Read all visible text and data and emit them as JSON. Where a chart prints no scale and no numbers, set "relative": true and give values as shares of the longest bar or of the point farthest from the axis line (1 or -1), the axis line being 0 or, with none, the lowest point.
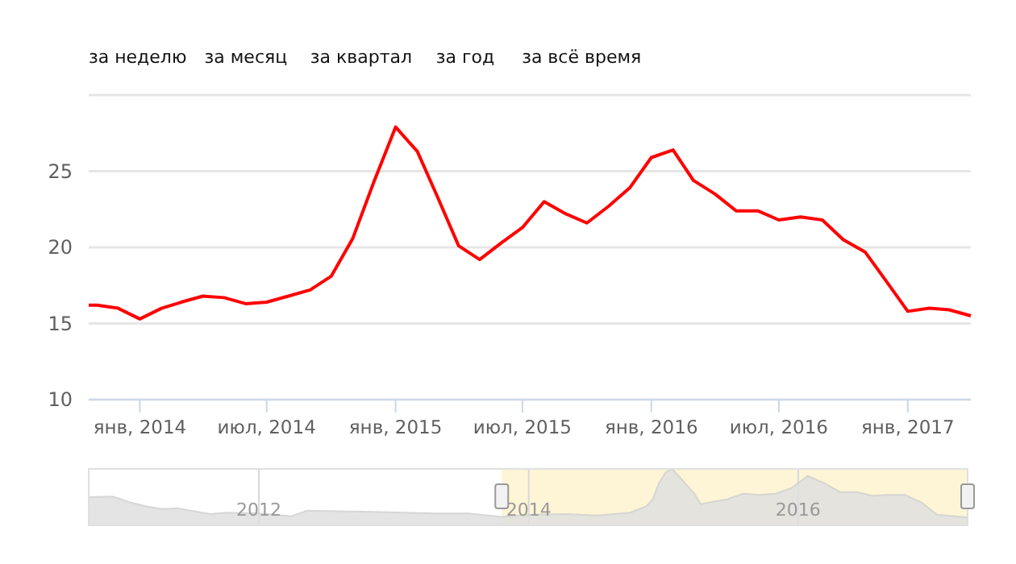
{
  "chart_data": [
    {
      "type": "line",
      "annotations": [
        "за неделю",
        "за месяц",
        "за квартал",
        "за год",
        "за всё время"
      ],
      "x": [
        "2013-10-20",
        "2013-11-01",
        "2013-12-01",
        "2014-01-01",
        "2014-02-01",
        "2014-03-01",
        "2014-04-01",
        "2014-05-01",
        "2014-06-01",
        "2014-07-01",
        "2014-08-01",
        "2014-09-01",
        "2014-10-01",
        "2014-11-01",
        "2014-12-01",
        "2015-01-01",
        "2015-02-01",
        "2015-03-01",
        "2015-04-01",
        "2015-05-01",
        "2015-06-01",
        "2015-07-01",
        "2015-08-01",
        "2015-09-01",
        "2015-10-01",
        "2015-11-01",
        "2015-12-01",
        "2016-01-01",
        "2016-02-01",
        "2016-03-01",
        "2016-04-01",
        "2016-05-01",
        "2016-06-01",
        "2016-07-01",
        "2016-08-01",
        "2016-09-01",
        "2016-10-01",
        "2016-11-01",
        "2016-12-01",
        "2017-01-01",
        "2017-02-01",
        "2017-03-01",
        "2017-04-01"
      ],
      "values": [
        16.2,
        16.2,
        16.0,
        15.3,
        16.0,
        16.4,
        16.8,
        16.7,
        16.3,
        16.4,
        16.8,
        17.2,
        18.1,
        20.6,
        24.3,
        27.9,
        26.3,
        23.4,
        20.1,
        19.2,
        20.3,
        21.3,
        23.0,
        22.2,
        21.6,
        22.7,
        23.9,
        25.9,
        26.4,
        24.4,
        23.5,
        22.4,
        22.4,
        21.8,
        22.0,
        21.8,
        20.5,
        19.7,
        17.8,
        15.8,
        16.0,
        15.9,
        15.5
      ],
      "color": "#ff0000",
      "xlim": [
        "2013-10-20",
        "2017-04-01"
      ],
      "ylim": [
        10,
        30
      ],
      "xticks": [
        {
          "value": "2014-01-01",
          "label": "янв, 2014"
        },
        {
          "value": "2014-07-01",
          "label": "июл, 2014"
        },
        {
          "value": "2015-01-01",
          "label": "янв, 2015"
        },
        {
          "value": "2015-07-01",
          "label": "июл, 2015"
        },
        {
          "value": "2016-01-01",
          "label": "янв, 2016"
        },
        {
          "value": "2016-07-01",
          "label": "июл, 2016"
        },
        {
          "value": "2017-01-01",
          "label": "янв, 2017"
        }
      ],
      "yticks": [
        10,
        15,
        20,
        25,
        {
          "value": 30,
          "label": null
        }
      ],
      "grid": "y"
    },
    {
      "type": "area",
      "relative": true,
      "color": "#e0e0e0",
      "x": [
        "2010-09-27",
        "2010-12-02",
        "2011-01-15",
        "2011-02-28",
        "2011-04-12",
        "2011-05-26",
        "2011-07-09",
        "2011-08-22",
        "2011-10-05",
        "2012-01-01",
        "2012-02-14",
        "2012-03-29",
        "2012-05-11",
        "2012-08-07",
        "2012-11-02",
        "2013-01-29",
        "2013-04-26",
        "2013-07-23",
        "2013-10-18",
        "2014-01-14",
        "2014-04-10",
        "2014-07-07",
        "2014-10-03",
        "2014-11-16",
        "2014-12-03",
        "2014-12-20",
        "2015-01-07",
        "2015-01-24",
        "2015-02-11",
        "2015-02-28",
        "2015-03-26",
        "2015-04-12",
        "2015-05-09",
        "2015-06-22",
        "2015-08-05",
        "2015-09-17",
        "2015-10-31",
        "2015-12-14",
        "2016-01-27",
        "2016-03-11",
        "2016-04-23",
        "2016-06-07",
        "2016-07-20",
        "2016-09-02",
        "2016-10-16",
        "2016-11-29",
        "2017-01-11",
        "2017-04-04"
      ],
      "values": [
        0.5,
        0.51,
        0.41,
        0.34,
        0.29,
        0.3,
        0.25,
        0.2,
        0.225,
        0.21,
        0.19,
        0.16,
        0.26,
        0.25,
        0.24,
        0.225,
        0.21,
        0.21,
        0.15,
        0.19,
        0.2,
        0.175,
        0.225,
        0.34,
        0.46,
        0.75,
        0.94,
        1,
        0.875,
        0.75,
        0.56,
        0.375,
        0.41,
        0.46,
        0.56,
        0.54,
        0.56,
        0.66,
        0.875,
        0.75,
        0.59,
        0.59,
        0.525,
        0.54,
        0.54,
        0.41,
        0.19,
        0.14
      ],
      "xlim": [
        "2010-09-27",
        "2017-04-04"
      ],
      "xticks": [
        "2012",
        "2014",
        "2016"
      ],
      "grid": "x",
      "bands": [
        {
          "axis": "x",
          "from": "2013-10-20",
          "to": "2017-04-04",
          "color": "#fdf5d6"
        }
      ]
    }
  ]
}
